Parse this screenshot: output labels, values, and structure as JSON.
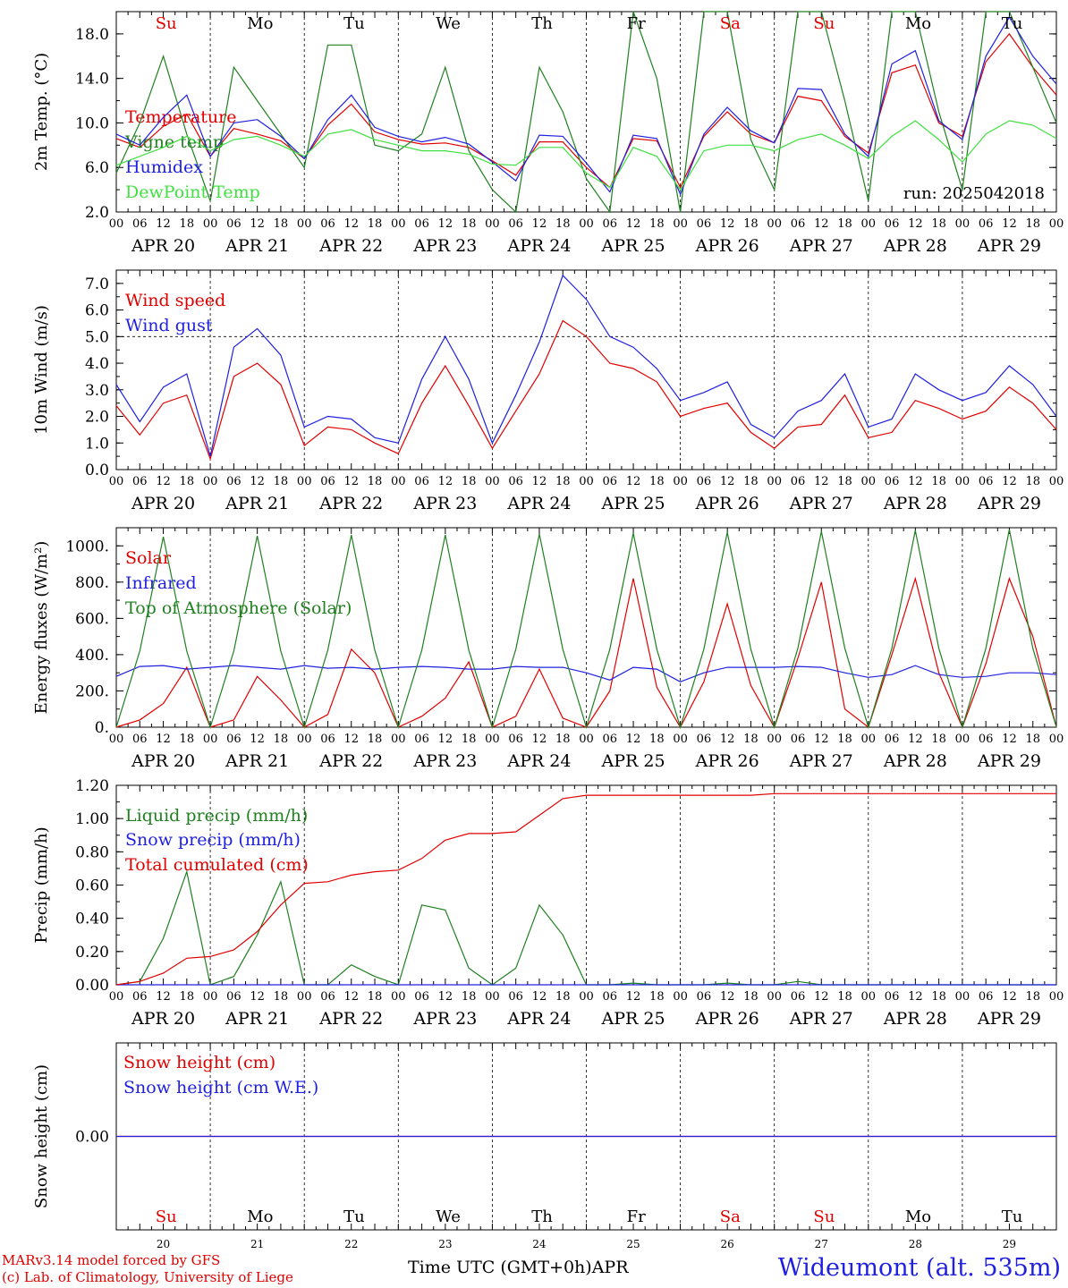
{
  "days": [
    "Su",
    "Mo",
    "Tu",
    "We",
    "Th",
    "Fr",
    "Sa",
    "Su",
    "Mo",
    "Tu"
  ],
  "weekend_flags": [
    true,
    false,
    false,
    false,
    false,
    false,
    true,
    true,
    false,
    false
  ],
  "dates": [
    "APR 20",
    "APR 21",
    "APR 22",
    "APR 23",
    "APR 24",
    "APR 25",
    "APR 26",
    "APR 27",
    "APR 28",
    "APR 29"
  ],
  "day_numbers": [
    "20",
    "21",
    "22",
    "23",
    "24",
    "25",
    "26",
    "27",
    "28",
    "29"
  ],
  "hour_ticks": [
    "00",
    "06",
    "12",
    "18"
  ],
  "colors": {
    "red": "#e00000",
    "green": "#208020",
    "blue": "#2020e0",
    "lightgreen": "#40e040"
  },
  "footer": {
    "model_line": "MARv3.14 model forced by GFS",
    "lab_line": "(c) Lab. of Climatology, University of Liege",
    "time_label": "Time UTC (GMT+0h)",
    "month": "APR",
    "station": "Wideumont (alt. 535m)"
  },
  "chart_data": [
    {
      "type": "line",
      "ylabel": "2m Temp. (°C)",
      "ylim": [
        2.0,
        20.0
      ],
      "yticks": [
        "2.0",
        "6.0",
        "10.0",
        "14.0",
        "18.0"
      ],
      "annotation": "run: 2025042018",
      "x_days": [
        0,
        0.25,
        0.5,
        0.75,
        1,
        1.25,
        1.5,
        1.75,
        2,
        2.25,
        2.5,
        2.75,
        3,
        3.25,
        3.5,
        3.75,
        4,
        4.25,
        4.5,
        4.75,
        5,
        5.25,
        5.5,
        5.75,
        6,
        6.25,
        6.5,
        6.75,
        7,
        7.25,
        7.5,
        7.75,
        8,
        8.25,
        8.5,
        8.75,
        9,
        9.25,
        9.5,
        9.75,
        10
      ],
      "series": [
        {
          "name": "Temperature",
          "color": "red",
          "values": [
            8.6,
            7.8,
            9.7,
            10.8,
            7.0,
            9.5,
            9.0,
            8.4,
            6.8,
            9.8,
            11.7,
            9.2,
            8.5,
            8.1,
            8.2,
            7.8,
            6.6,
            5.3,
            8.3,
            8.3,
            6.0,
            4.2,
            8.6,
            8.4,
            4.2,
            8.8,
            11.0,
            9.0,
            8.2,
            12.4,
            12.0,
            8.8,
            7.3,
            14.5,
            15.2,
            10.0,
            8.8,
            15.5,
            18.0,
            15.0,
            12.5
          ]
        },
        {
          "name": "Vigne temp",
          "color": "green",
          "values": [
            5.5,
            10.0,
            16.0,
            9.0,
            3.0,
            15.0,
            12.0,
            9.0,
            6.0,
            17.0,
            17.0,
            8.0,
            7.5,
            9.0,
            15.0,
            7.5,
            4.0,
            0.5,
            15.0,
            11.0,
            5.0,
            0.5,
            20.0,
            14.0,
            0.5,
            20.0,
            20.0,
            8.5,
            4.0,
            20.0,
            20.0,
            12.0,
            3.0,
            20.0,
            20.0,
            11.0,
            4.0,
            20.0,
            20.0,
            15.0,
            10.0
          ]
        },
        {
          "name": "Humidex",
          "color": "blue",
          "values": [
            9.0,
            8.0,
            10.5,
            12.5,
            7.0,
            10.0,
            10.3,
            8.8,
            6.8,
            10.3,
            12.5,
            9.6,
            8.8,
            8.3,
            8.7,
            8.1,
            6.5,
            4.8,
            8.9,
            8.8,
            6.4,
            3.8,
            8.9,
            8.6,
            3.6,
            9.0,
            11.4,
            9.3,
            8.2,
            13.1,
            13.0,
            9.0,
            7.0,
            15.3,
            16.5,
            10.2,
            8.5,
            16.0,
            19.5,
            16.0,
            13.5
          ]
        },
        {
          "name": "DewPoint Temp",
          "color": "lightgreen",
          "values": [
            6.2,
            7.0,
            7.8,
            8.8,
            7.5,
            8.5,
            8.8,
            8.0,
            7.0,
            9.0,
            9.4,
            8.5,
            8.0,
            7.5,
            7.5,
            7.2,
            6.3,
            6.2,
            7.8,
            7.8,
            5.5,
            4.2,
            7.8,
            7.0,
            4.0,
            7.5,
            8.0,
            8.0,
            7.5,
            8.5,
            9.0,
            8.0,
            6.8,
            8.8,
            10.2,
            8.5,
            6.5,
            9.0,
            10.2,
            9.8,
            8.6
          ]
        }
      ]
    },
    {
      "type": "line",
      "ylabel": "10m Wind (m/s)",
      "ylim": [
        0.0,
        7.5
      ],
      "yticks": [
        "0.0",
        "1.0",
        "2.0",
        "3.0",
        "4.0",
        "5.0",
        "6.0",
        "7.0"
      ],
      "reference_line": 5.0,
      "x_days": [
        0,
        0.25,
        0.5,
        0.75,
        1,
        1.25,
        1.5,
        1.75,
        2,
        2.25,
        2.5,
        2.75,
        3,
        3.25,
        3.5,
        3.75,
        4,
        4.25,
        4.5,
        4.75,
        5,
        5.25,
        5.5,
        5.75,
        6,
        6.25,
        6.5,
        6.75,
        7,
        7.25,
        7.5,
        7.75,
        8,
        8.25,
        8.5,
        8.75,
        9,
        9.25,
        9.5,
        9.75,
        10
      ],
      "series": [
        {
          "name": "Wind speed",
          "color": "red",
          "values": [
            2.4,
            1.3,
            2.5,
            2.8,
            0.4,
            3.5,
            4.0,
            3.2,
            0.9,
            1.6,
            1.5,
            1.0,
            0.6,
            2.5,
            3.9,
            2.4,
            0.8,
            2.2,
            3.6,
            5.6,
            5.0,
            4.0,
            3.8,
            3.3,
            2.0,
            2.3,
            2.5,
            1.4,
            0.8,
            1.6,
            1.7,
            2.8,
            1.2,
            1.4,
            2.6,
            2.3,
            1.9,
            2.2,
            3.1,
            2.5,
            1.5
          ]
        },
        {
          "name": "Wind gust",
          "color": "blue",
          "values": [
            3.2,
            1.8,
            3.1,
            3.6,
            0.5,
            4.6,
            5.3,
            4.3,
            1.6,
            2.0,
            1.9,
            1.2,
            1.0,
            3.4,
            5.0,
            3.4,
            1.0,
            2.8,
            4.8,
            7.3,
            6.4,
            5.0,
            4.6,
            3.8,
            2.6,
            2.9,
            3.3,
            1.7,
            1.2,
            2.2,
            2.6,
            3.6,
            1.6,
            1.9,
            3.6,
            3.0,
            2.6,
            2.9,
            3.9,
            3.2,
            2.0
          ]
        }
      ]
    },
    {
      "type": "line",
      "ylabel": "Energy fluxes (W/m²)",
      "ylim": [
        0,
        1100
      ],
      "yticks": [
        "0.",
        "200.",
        "400.",
        "600.",
        "800.",
        "1000."
      ],
      "x_days": [
        0,
        0.25,
        0.5,
        0.75,
        1,
        1.25,
        1.5,
        1.75,
        2,
        2.25,
        2.5,
        2.75,
        3,
        3.25,
        3.5,
        3.75,
        4,
        4.25,
        4.5,
        4.75,
        5,
        5.25,
        5.5,
        5.75,
        6,
        6.25,
        6.5,
        6.75,
        7,
        7.25,
        7.5,
        7.75,
        8,
        8.25,
        8.5,
        8.75,
        9,
        9.25,
        9.5,
        9.75,
        10
      ],
      "series": [
        {
          "name": "Solar",
          "color": "red",
          "values": [
            0,
            40,
            130,
            330,
            0,
            40,
            280,
            150,
            0,
            70,
            430,
            300,
            0,
            60,
            160,
            360,
            0,
            60,
            320,
            50,
            0,
            200,
            820,
            220,
            0,
            250,
            680,
            230,
            0,
            380,
            800,
            100,
            0,
            400,
            820,
            300,
            0,
            350,
            820,
            500,
            0
          ]
        },
        {
          "name": "Infrared",
          "color": "blue",
          "values": [
            280,
            335,
            340,
            320,
            330,
            340,
            330,
            320,
            340,
            325,
            330,
            320,
            330,
            335,
            330,
            320,
            320,
            335,
            330,
            330,
            300,
            260,
            330,
            320,
            250,
            300,
            330,
            330,
            330,
            335,
            330,
            300,
            275,
            290,
            340,
            290,
            275,
            280,
            300,
            300,
            290
          ]
        },
        {
          "name": "Top of Atmosphere (Solar)",
          "color": "green",
          "values": [
            0,
            420,
            1050,
            420,
            0,
            420,
            1055,
            420,
            0,
            425,
            1060,
            425,
            0,
            425,
            1060,
            425,
            0,
            430,
            1065,
            430,
            0,
            430,
            1070,
            430,
            0,
            430,
            1075,
            430,
            0,
            435,
            1080,
            435,
            0,
            435,
            1085,
            435,
            0,
            435,
            1090,
            435,
            0
          ]
        }
      ]
    },
    {
      "type": "line",
      "ylabel": "Precip (mm/h)",
      "ylim": [
        0.0,
        1.2
      ],
      "yticks": [
        "0.00",
        "0.20",
        "0.40",
        "0.60",
        "0.80",
        "1.00",
        "1.20"
      ],
      "x_days": [
        0,
        0.25,
        0.5,
        0.75,
        1,
        1.25,
        1.5,
        1.75,
        2,
        2.25,
        2.5,
        2.75,
        3,
        3.25,
        3.5,
        3.75,
        4,
        4.25,
        4.5,
        4.75,
        5,
        5.25,
        5.5,
        5.75,
        6,
        6.25,
        6.5,
        6.75,
        7,
        7.25,
        7.5,
        7.75,
        8,
        8.25,
        8.5,
        8.75,
        9,
        9.25,
        9.5,
        9.75,
        10
      ],
      "series": [
        {
          "name": "Liquid precip (mm/h)",
          "color": "green",
          "values": [
            0,
            0.02,
            0.28,
            0.68,
            0,
            0.05,
            0.3,
            0.62,
            0,
            0,
            0.12,
            0.05,
            0,
            0.48,
            0.45,
            0.1,
            0,
            0.1,
            0.48,
            0.3,
            0,
            0,
            0.01,
            0,
            0,
            0,
            0.01,
            0,
            0,
            0.02,
            0,
            0,
            0,
            0,
            0,
            0,
            0,
            0,
            0,
            0,
            0
          ]
        },
        {
          "name": "Snow precip (mm/h)",
          "color": "blue",
          "values": [
            0,
            0,
            0,
            0,
            0,
            0,
            0,
            0,
            0,
            0,
            0,
            0,
            0,
            0,
            0,
            0,
            0,
            0,
            0,
            0,
            0,
            0,
            0,
            0,
            0,
            0,
            0,
            0,
            0,
            0,
            0,
            0,
            0,
            0,
            0,
            0,
            0,
            0,
            0,
            0,
            0
          ]
        },
        {
          "name": "Total cumulated (cm)",
          "color": "red",
          "values": [
            0,
            0.02,
            0.07,
            0.16,
            0.17,
            0.21,
            0.32,
            0.48,
            0.61,
            0.62,
            0.66,
            0.68,
            0.69,
            0.76,
            0.87,
            0.91,
            0.91,
            0.92,
            1.02,
            1.12,
            1.14,
            1.14,
            1.14,
            1.14,
            1.14,
            1.14,
            1.14,
            1.14,
            1.15,
            1.15,
            1.15,
            1.15,
            1.15,
            1.15,
            1.15,
            1.15,
            1.15,
            1.15,
            1.15,
            1.15,
            1.15
          ]
        }
      ]
    },
    {
      "type": "line",
      "ylabel": "Snow height (cm)",
      "ylim": [
        -1.0,
        1.0
      ],
      "yticks": [
        "0.00"
      ],
      "x_days": [
        0,
        10
      ],
      "series": [
        {
          "name": "Snow height (cm)",
          "color": "red",
          "values": [
            0,
            0
          ]
        },
        {
          "name": "Snow height (cm W.E.)",
          "color": "blue",
          "values": [
            0,
            0
          ]
        }
      ]
    }
  ]
}
